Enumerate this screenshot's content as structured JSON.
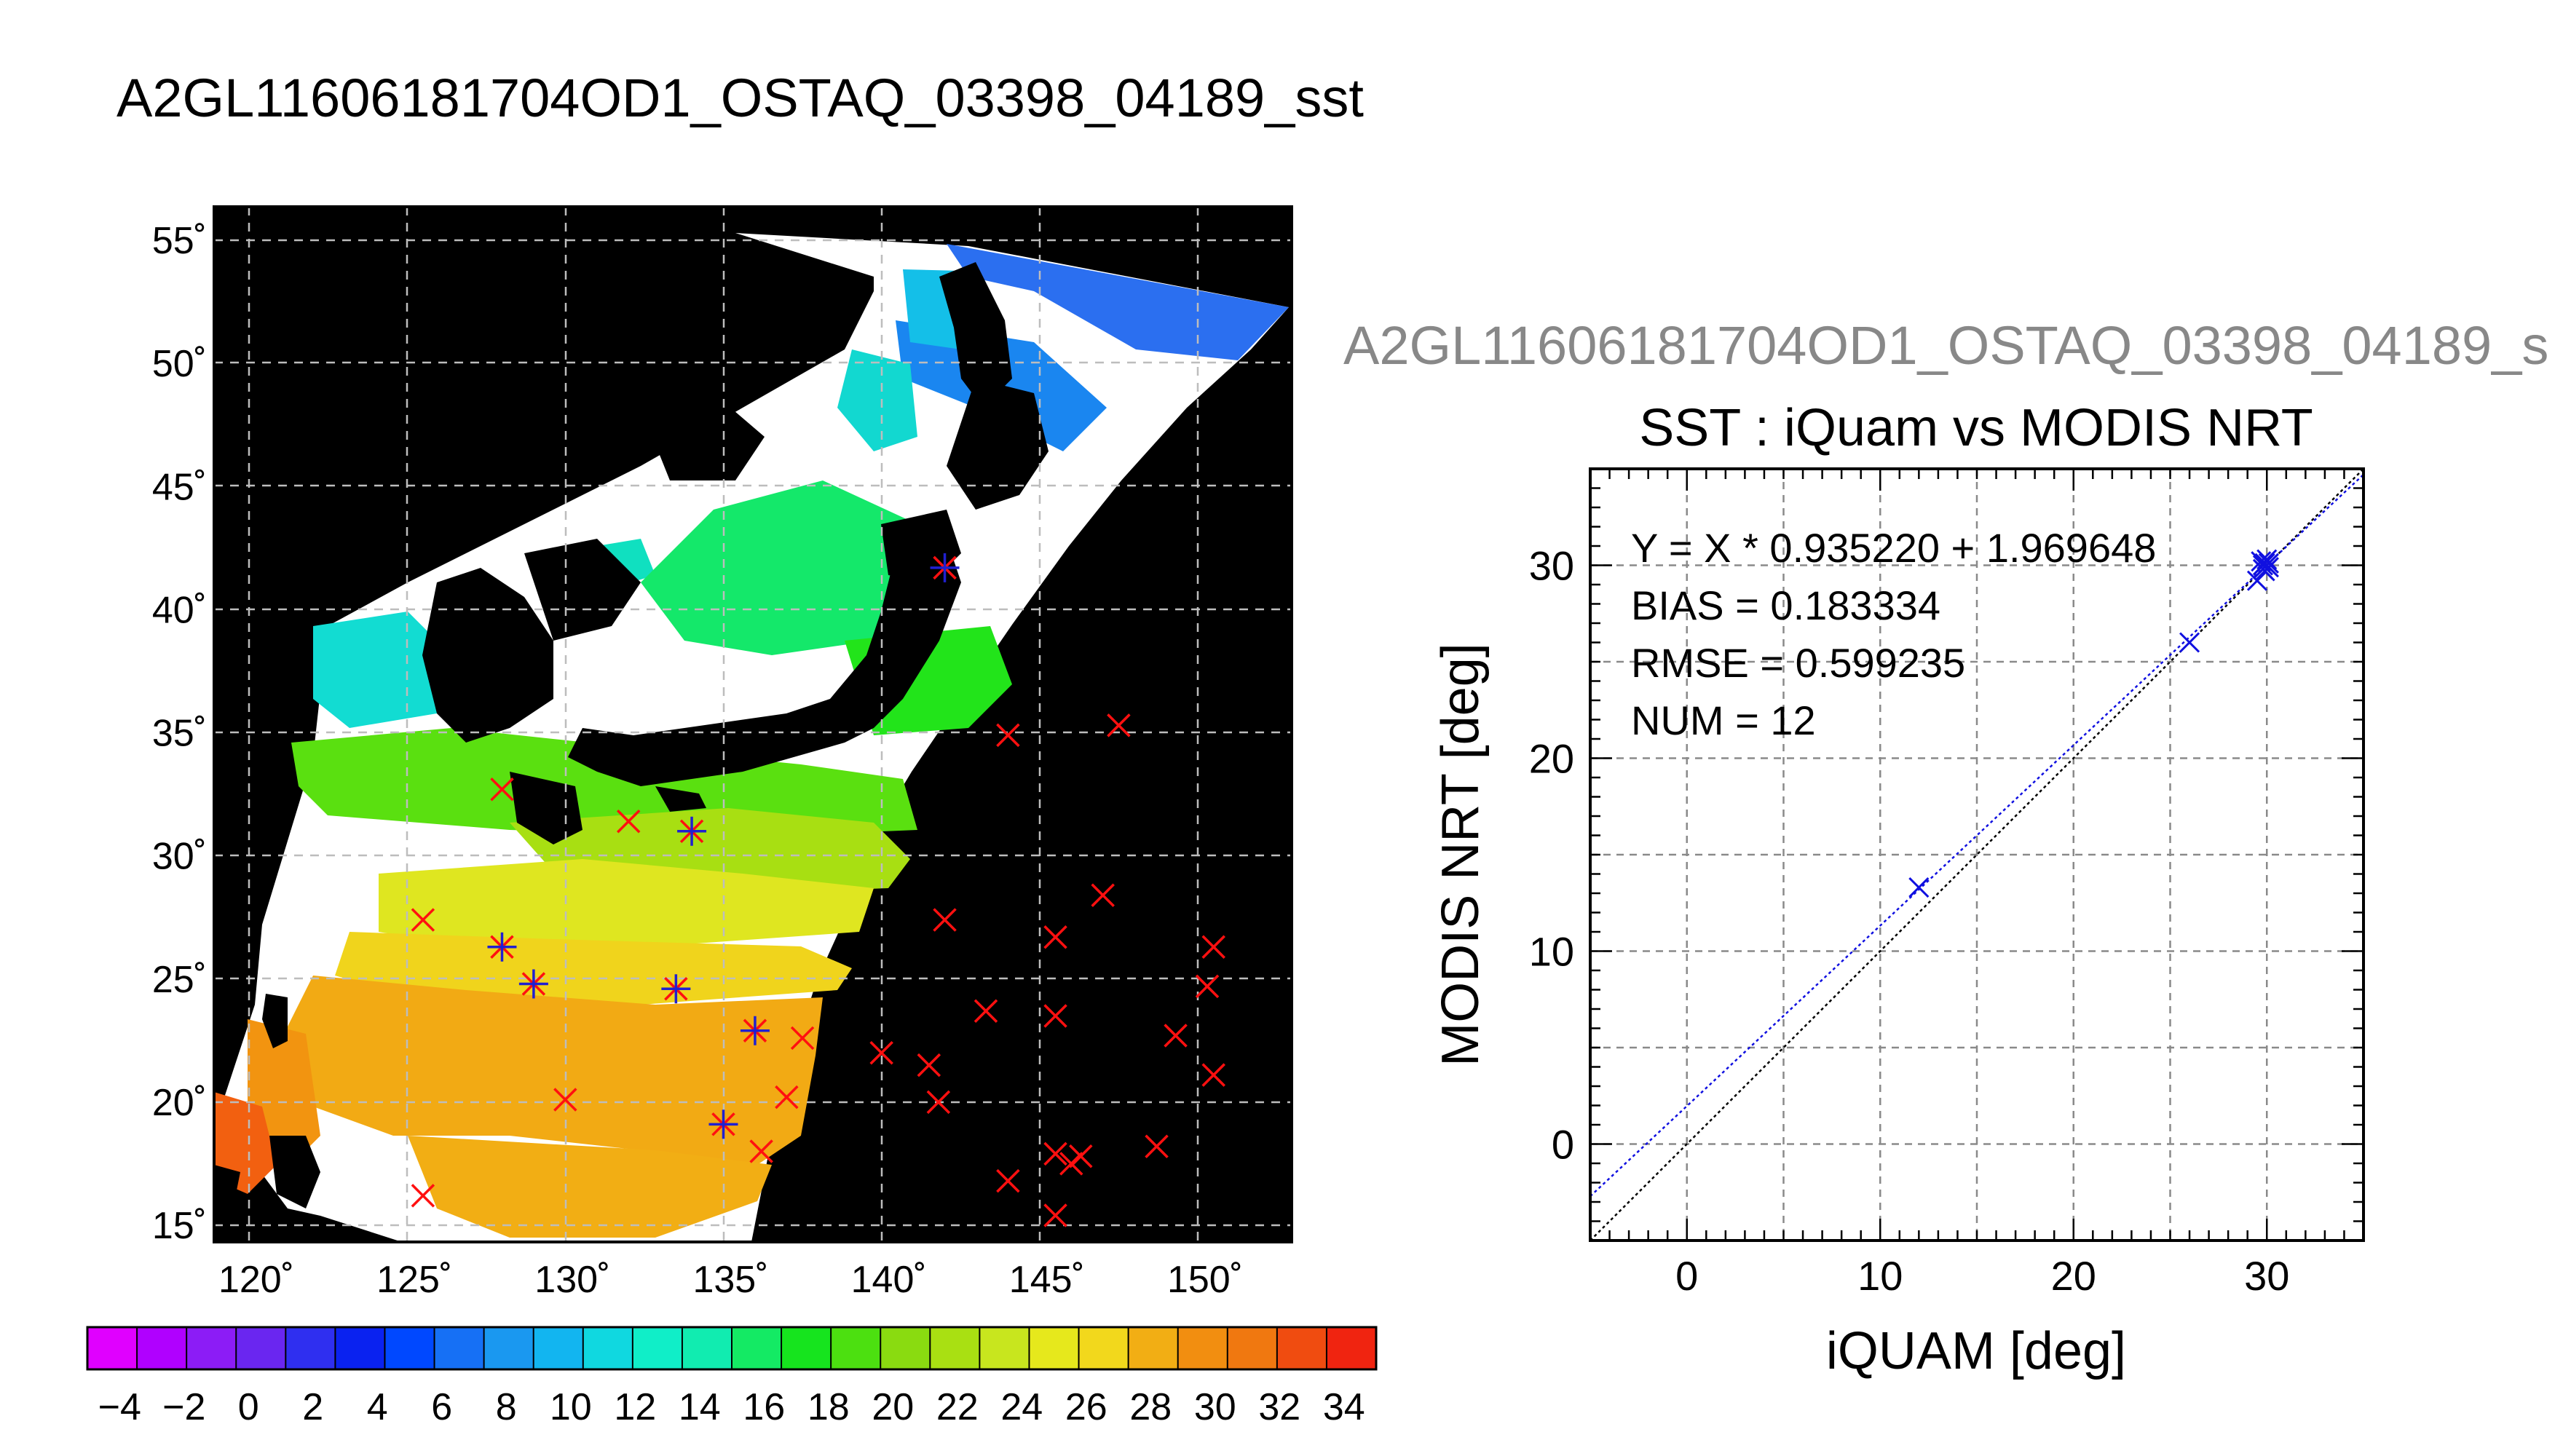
{
  "page_title": "A2GL11606181704OD1_OSTAQ_03398_04189_sst",
  "scatter_title_partial": "A2GL11606181704OD1_OSTAQ_03398_04189_s",
  "chart_data": [
    {
      "type": "map",
      "lon_ticks": [
        "120˚",
        "125˚",
        "130˚",
        "135˚",
        "140˚",
        "145˚",
        "150˚"
      ],
      "lon_values": [
        120,
        125,
        130,
        135,
        140,
        145,
        150
      ],
      "lat_ticks": [
        "55˚",
        "50˚",
        "45˚",
        "40˚",
        "35˚",
        "30˚",
        "25˚",
        "20˚",
        "15˚"
      ],
      "lat_values": [
        55,
        50,
        45,
        40,
        35,
        30,
        25,
        20,
        15
      ],
      "lon_range": [
        119,
        152
      ],
      "lat_range": [
        14.5,
        56
      ],
      "grid": true,
      "markers_red": [
        [
          142.0,
          41.7
        ],
        [
          144.0,
          34.9
        ],
        [
          147.5,
          35.3
        ],
        [
          128.0,
          32.7
        ],
        [
          132.0,
          31.4
        ],
        [
          134.0,
          31.0
        ],
        [
          125.5,
          27.4
        ],
        [
          142.0,
          27.4
        ],
        [
          147.0,
          28.4
        ],
        [
          145.5,
          26.7
        ],
        [
          150.5,
          26.3
        ],
        [
          150.3,
          24.7
        ],
        [
          128.0,
          26.3
        ],
        [
          129.0,
          24.8
        ],
        [
          133.5,
          24.6
        ],
        [
          143.3,
          23.7
        ],
        [
          145.5,
          23.5
        ],
        [
          136.0,
          22.9
        ],
        [
          137.5,
          22.6
        ],
        [
          140.0,
          22.0
        ],
        [
          141.5,
          21.5
        ],
        [
          149.3,
          22.7
        ],
        [
          150.5,
          21.1
        ],
        [
          130.0,
          20.1
        ],
        [
          137.0,
          20.2
        ],
        [
          141.8,
          20.0
        ],
        [
          135.0,
          19.1
        ],
        [
          136.2,
          18.0
        ],
        [
          145.5,
          17.9
        ],
        [
          146.3,
          17.8
        ],
        [
          146.0,
          17.5
        ],
        [
          148.7,
          18.2
        ],
        [
          144.0,
          16.8
        ],
        [
          145.5,
          15.4
        ],
        [
          125.5,
          16.2
        ]
      ],
      "markers_blue": [
        [
          142.0,
          41.7
        ],
        [
          134.0,
          31.0
        ],
        [
          128.0,
          26.3
        ],
        [
          129.0,
          24.8
        ],
        [
          133.5,
          24.6
        ],
        [
          136.0,
          22.9
        ],
        [
          135.0,
          19.1
        ]
      ]
    },
    {
      "type": "colorbar",
      "tick_labels": [
        "−4",
        "−2",
        "0",
        "2",
        "4",
        "6",
        "8",
        "10",
        "12",
        "14",
        "16",
        "18",
        "20",
        "22",
        "24",
        "26",
        "28",
        "30",
        "32",
        "34"
      ],
      "colors": [
        "#e000ff",
        "#b000ff",
        "#8c1cf6",
        "#6a26f0",
        "#2f2ff0",
        "#0a22f0",
        "#0048ff",
        "#1670f5",
        "#1a98f0",
        "#12b5f0",
        "#10d8e0",
        "#10eec8",
        "#11ecb0",
        "#14ea64",
        "#16e41e",
        "#4ce010",
        "#8adb10",
        "#a9e012",
        "#c8e61e",
        "#e6e81c",
        "#f2d81c",
        "#f2ae14",
        "#f28e10",
        "#f07810",
        "#f04c10",
        "#f02410"
      ]
    },
    {
      "type": "scatter",
      "title": "SST : iQuam vs MODIS NRT",
      "xlabel": "iQUAM [deg]",
      "ylabel": "MODIS NRT [deg]",
      "xlim": [
        -5,
        35
      ],
      "ylim": [
        -5,
        35
      ],
      "xticks": [
        0,
        10,
        20,
        30
      ],
      "yticks": [
        0,
        10,
        20,
        30
      ],
      "grid": true,
      "annotations": [
        "Y = X * 0.935220 + 1.969648",
        "BIAS = 0.183334",
        "RMSE = 0.599235",
        "NUM = 12"
      ],
      "regression": {
        "slope": 0.93522,
        "intercept": 1.969648
      },
      "points": [
        [
          12.0,
          13.3
        ],
        [
          26.0,
          26.0
        ],
        [
          29.5,
          29.2
        ],
        [
          29.8,
          29.8
        ],
        [
          30.0,
          30.0
        ],
        [
          29.9,
          30.1
        ],
        [
          29.7,
          30.2
        ],
        [
          30.1,
          29.9
        ],
        [
          29.9,
          29.7
        ],
        [
          30.0,
          30.3
        ],
        [
          29.8,
          30.0
        ],
        [
          30.1,
          30.1
        ]
      ]
    }
  ]
}
